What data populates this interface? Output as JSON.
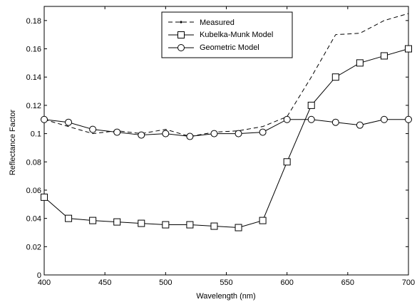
{
  "chart_data": {
    "type": "line",
    "xlabel": "Wavelength (nm)",
    "ylabel": "Reflectance Factor",
    "xlim": [
      400,
      700
    ],
    "ylim": [
      0,
      0.19
    ],
    "xticks": [
      "400",
      "450",
      "500",
      "550",
      "600",
      "650",
      "700"
    ],
    "yticks": [
      "0",
      "0.02",
      "0.04",
      "0.06",
      "0.08",
      "0.1",
      "0.12",
      "0.14",
      "0.16",
      "0.18"
    ],
    "grid": false,
    "legend_position": "top-center",
    "series": [
      {
        "name": "Measured",
        "style": "dashed",
        "marker": "none",
        "x": [
          400,
          420,
          440,
          460,
          480,
          500,
          520,
          540,
          560,
          580,
          600,
          620,
          640,
          660,
          680,
          700
        ],
        "y": [
          0.11,
          0.105,
          0.1,
          0.102,
          0.1,
          0.103,
          0.098,
          0.101,
          0.102,
          0.105,
          0.112,
          0.14,
          0.17,
          0.171,
          0.18,
          0.185
        ]
      },
      {
        "name": "Kubelka-Munk Model",
        "style": "solid",
        "marker": "square",
        "x": [
          400,
          420,
          440,
          460,
          480,
          500,
          520,
          540,
          560,
          580,
          600,
          620,
          640,
          660,
          680,
          700
        ],
        "y": [
          0.055,
          0.04,
          0.0385,
          0.0375,
          0.0365,
          0.0355,
          0.0355,
          0.0345,
          0.0335,
          0.0385,
          0.08,
          0.12,
          0.14,
          0.15,
          0.155,
          0.16
        ]
      },
      {
        "name": "Geometric Model",
        "style": "solid",
        "marker": "circle",
        "x": [
          400,
          420,
          440,
          460,
          480,
          500,
          520,
          540,
          560,
          580,
          600,
          620,
          640,
          660,
          680,
          700
        ],
        "y": [
          0.11,
          0.108,
          0.103,
          0.101,
          0.099,
          0.1,
          0.098,
          0.1,
          0.1,
          0.101,
          0.11,
          0.11,
          0.108,
          0.106,
          0.11,
          0.11
        ]
      }
    ]
  }
}
